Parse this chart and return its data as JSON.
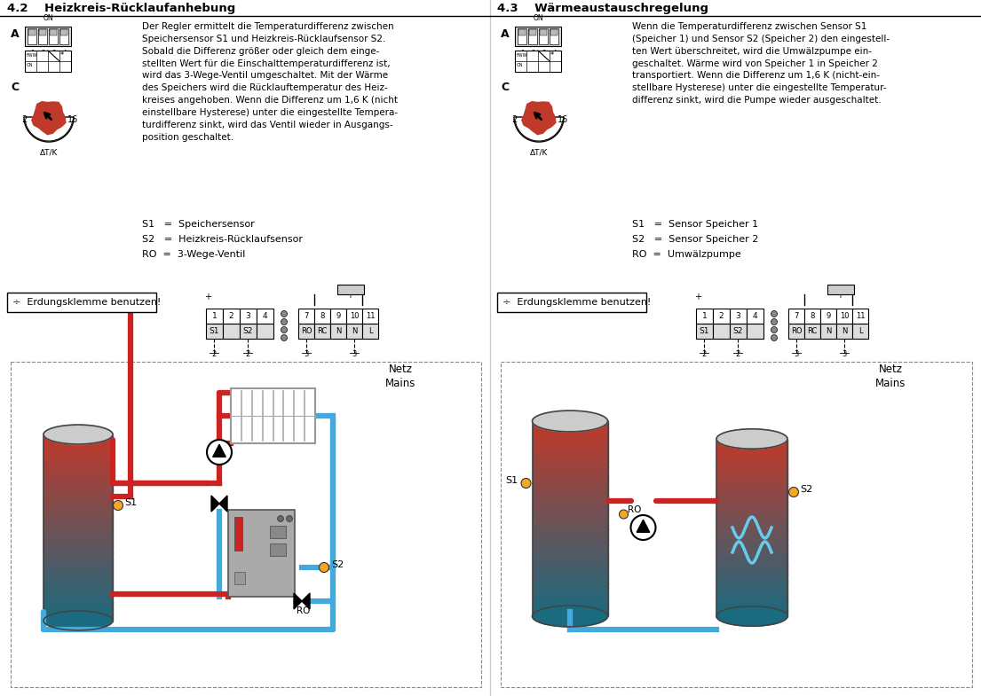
{
  "title_left": "4.2    Heizkreis-Rücklaufanhebung",
  "title_right": "4.3    Wärmeaustauschregelung",
  "text_left": "Der Regler ermittelt die Temperaturdifferenz zwischen\nSpeichersensor S1 und Heizkreis-Rücklaufsensor S2.\nSobald die Differenz größer oder gleich dem einge-\nstellten Wert für die Einschalttemperaturdifferenz ist,\nwird das 3-Wege-Ventil umgeschaltet. Mit der Wärme\ndes Speichers wird die Rücklauftemperatur des Heiz-\nkreises angehoben. Wenn die Differenz um 1,6 K (nicht\neinstellbare Hysterese) unter die eingestellte Tempera-\nturdifferenz sinkt, wird das Ventil wieder in Ausgangs-\nposition geschaltet.",
  "text_right": "Wenn die Temperaturdifferenz zwischen Sensor S1\n(Speicher 1) und Sensor S2 (Speicher 2) den eingestell-\nten Wert überschreitet, wird die Umwälzpumpe ein-\ngeschaltet. Wärme wird von Speicher 1 in Speicher 2\ntransportiert. Wenn die Differenz um 1,6 K (nicht-ein-\nstellbare Hysterese) unter die eingestellte Temperatur-\ndifferenz sinkt, wird die Pumpe wieder ausgeschaltet.",
  "legend_left": [
    "S1   =  Speichersensor",
    "S2   =  Heizkreis-Rücklaufsensor",
    "RO  =  3-Wege-Ventil"
  ],
  "legend_right": [
    "S1   =  Sensor Speicher 1",
    "S2   =  Sensor Speicher 2",
    "RO  =  Umwälzpumpe"
  ],
  "erdung_text": "÷  Erdungsklemme benutzen!",
  "netz_text": "Netz\nMains",
  "red": "#cc2222",
  "blue": "#44aadd",
  "light_blue": "#66ccee",
  "orange": "#f5a623",
  "tank_top": "#c0392b",
  "tank_bot": "#1a6a80",
  "gray_tank": "#aaaaaa",
  "ctrl_gray": "#aaaaaa"
}
